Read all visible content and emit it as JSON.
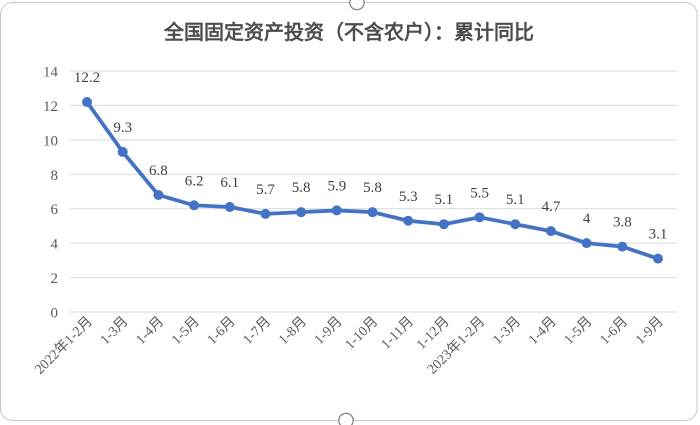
{
  "chart_data": {
    "type": "line",
    "title": "全国固定资产投资（不含农户）：累计同比",
    "categories": [
      "2022年1-2月",
      "1-3月",
      "1-4月",
      "1-5月",
      "1-6月",
      "1-7月",
      "1-8月",
      "1-9月",
      "1-10月",
      "1-11月",
      "1-12月",
      "2023年1-2月",
      "1-3月",
      "1-4月",
      "1-5月",
      "1-6月",
      "1-9月"
    ],
    "values": [
      12.2,
      9.3,
      6.8,
      6.2,
      6.1,
      5.7,
      5.8,
      5.9,
      5.8,
      5.3,
      5.1,
      5.5,
      5.1,
      4.7,
      4,
      3.8,
      3.1
    ],
    "data_labels": [
      "12.2",
      "9.3",
      "6.8",
      "6.2",
      "6.1",
      "5.7",
      "5.8",
      "5.9",
      "5.8",
      "5.3",
      "5.1",
      "5.5",
      "5.1",
      "4.7",
      "4",
      "3.8",
      "3.1"
    ],
    "y_ticks": [
      "0",
      "2",
      "4",
      "6",
      "8",
      "10",
      "12",
      "14"
    ],
    "ylim": [
      0,
      14
    ],
    "xlabel": "",
    "ylabel": "",
    "grid": true,
    "legend": "none",
    "colors": {
      "line": "#4472C4",
      "marker": "#4472C4",
      "gridline": "#D9D9D9",
      "axis_text": "#595959",
      "data_label_text": "#404040",
      "title_text": "#4d4d4d",
      "frame_border": "#c9c7c5"
    }
  }
}
